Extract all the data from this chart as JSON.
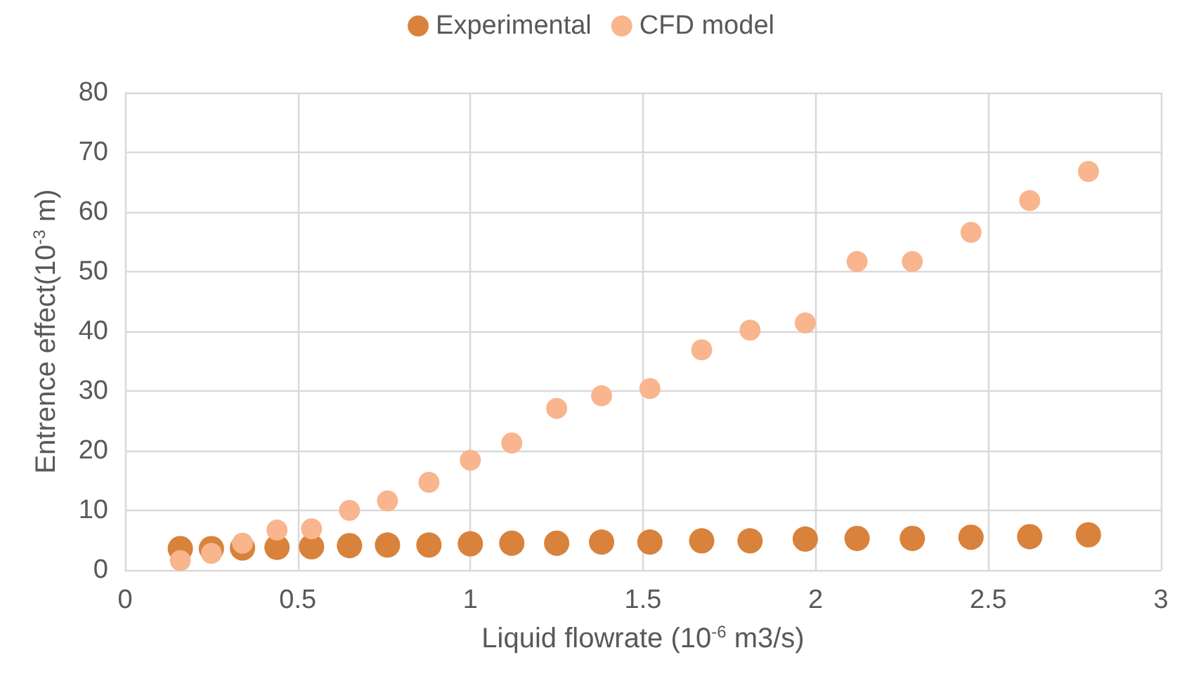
{
  "chart_data": {
    "type": "scatter",
    "xlabel": "Liquid flowrate (10$^{-6}$ m3/s)",
    "ylabel": "Entrence effect(10$^{-3}$ m)",
    "x": [
      0.16,
      0.25,
      0.34,
      0.44,
      0.54,
      0.65,
      0.76,
      0.88,
      1.0,
      1.12,
      1.25,
      1.38,
      1.52,
      1.67,
      1.81,
      1.97,
      2.12,
      2.28,
      2.45,
      2.62,
      2.79
    ],
    "series": [
      {
        "name": "Experimental",
        "color": "#d9823b",
        "values": [
          3.6,
          3.6,
          3.7,
          3.8,
          3.9,
          4.1,
          4.2,
          4.2,
          4.4,
          4.5,
          4.5,
          4.7,
          4.7,
          4.9,
          4.9,
          5.2,
          5.3,
          5.3,
          5.5,
          5.6,
          5.9
        ]
      },
      {
        "name": "CFD model",
        "color": "#f8b58e",
        "values": [
          1.6,
          2.8,
          4.5,
          6.7,
          6.9,
          10.0,
          11.6,
          14.7,
          18.4,
          21.3,
          27.1,
          29.2,
          30.4,
          36.9,
          40.2,
          41.4,
          51.7,
          51.7,
          56.6,
          61.9,
          66.8
        ]
      }
    ],
    "xlim": [
      0,
      3
    ],
    "xticks": [
      0,
      0.5,
      1,
      1.5,
      2,
      2.5,
      3
    ],
    "ylim": [
      0,
      80
    ],
    "yticks": [
      0,
      10,
      20,
      30,
      40,
      50,
      60,
      70,
      80
    ],
    "grid": true,
    "legend": "top",
    "marker": "circle"
  }
}
